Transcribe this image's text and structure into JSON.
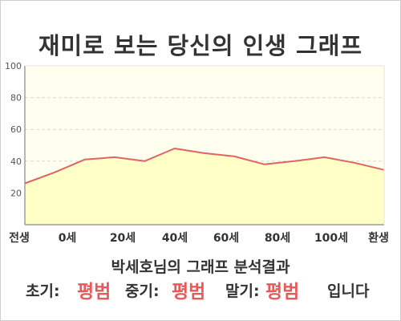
{
  "title": "재미로 보는 당신의 인생 그래프",
  "chart_data": {
    "type": "area",
    "x_labels": [
      "전생",
      "0세",
      "20세",
      "40세",
      "60세",
      "80세",
      "100세",
      "환생"
    ],
    "y_ticks": [
      20,
      40,
      60,
      80,
      100
    ],
    "ylim": [
      0,
      100
    ],
    "series": [
      {
        "values": [
          26,
          33,
          41,
          42.5,
          40,
          48,
          45,
          43,
          38,
          40,
          42.5,
          39,
          34.5
        ]
      }
    ],
    "grid": true,
    "colors": {
      "line": "#e06464",
      "fill": "#ffffc6",
      "plot_bg": "#fffff0",
      "grid": "#dcdcc8",
      "axis": "#888888"
    }
  },
  "summary": {
    "title": "박세호님의 그래프 분석결과",
    "early_label": "초기:",
    "early_value": "평범",
    "mid_label": "중기:",
    "mid_value": "평범",
    "late_label": "말기:",
    "late_value": "평범",
    "suffix": "입니다"
  }
}
